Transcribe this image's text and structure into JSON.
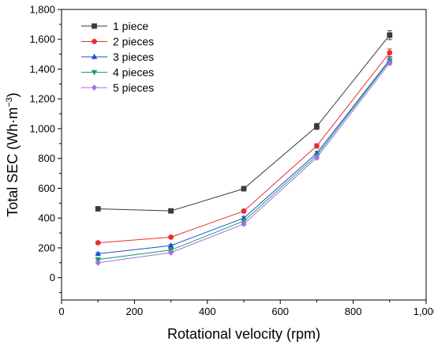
{
  "chart_data": {
    "type": "line",
    "xlabel": "Rotational velocity (rpm)",
    "ylabel": "Total SEC (Wh·m",
    "ylabel_sup": "−3",
    "ylabel_end": ")",
    "xlim": [
      0,
      1000
    ],
    "ylim": [
      -150,
      1800
    ],
    "x_ticks": [
      0,
      200,
      400,
      600,
      800,
      1000
    ],
    "x_tick_labels": [
      "0",
      "200",
      "400",
      "600",
      "800",
      "1,000"
    ],
    "y_ticks": [
      0,
      200,
      400,
      600,
      800,
      1000,
      1200,
      1400,
      1600,
      1800
    ],
    "y_tick_labels": [
      "0",
      "200",
      "400",
      "600",
      "800",
      "1,000",
      "1,200",
      "1,400",
      "1,600",
      "1,800"
    ],
    "grid": false,
    "legend_position": "top-left",
    "x": [
      100,
      300,
      500,
      700,
      900
    ],
    "series": [
      {
        "name": "1 piece",
        "color": "#3b3b3b",
        "marker": "square",
        "values": [
          462,
          448,
          597,
          1015,
          1628
        ],
        "errors": [
          12,
          12,
          15,
          20,
          30
        ]
      },
      {
        "name": "2 pieces",
        "color": "#e8302b",
        "marker": "circle",
        "values": [
          234,
          272,
          447,
          884,
          1510
        ],
        "errors": [
          10,
          8,
          10,
          15,
          25
        ]
      },
      {
        "name": "3 pieces",
        "color": "#1f4fd6",
        "marker": "triangle-up",
        "values": [
          160,
          215,
          400,
          835,
          1462
        ],
        "errors": [
          8,
          8,
          10,
          12,
          15
        ]
      },
      {
        "name": "4 pieces",
        "color": "#1d9e6a",
        "marker": "triangle-down",
        "values": [
          122,
          185,
          380,
          820,
          1455
        ],
        "errors": [
          6,
          6,
          8,
          10,
          12
        ]
      },
      {
        "name": "5 pieces",
        "color": "#a66fe0",
        "marker": "diamond",
        "values": [
          100,
          168,
          360,
          805,
          1440
        ],
        "errors": [
          5,
          5,
          8,
          10,
          12
        ]
      }
    ]
  }
}
